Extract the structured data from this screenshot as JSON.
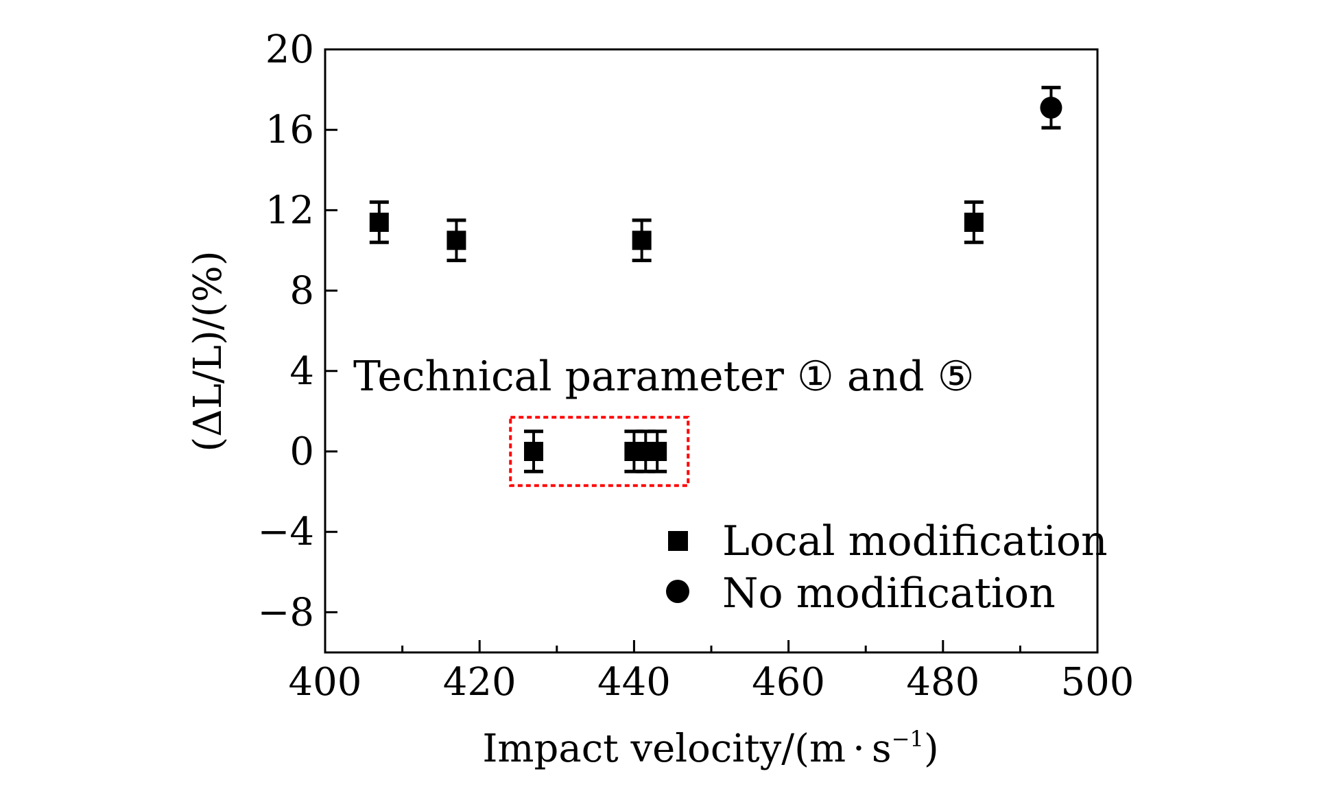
{
  "chart_data": {
    "type": "scatter",
    "title": "",
    "xlabel": "Impact velocity/(m·s⁻¹)",
    "xlabel_main": "Impact velocity/(m",
    "xlabel_dot": "·",
    "xlabel_s": "s",
    "xlabel_exp": "−1",
    "xlabel_close": ")",
    "ylabel": "(ΔL/L)/(%)",
    "xlim": [
      400,
      500
    ],
    "ylim": [
      -10,
      20
    ],
    "xticks": [
      400,
      420,
      440,
      460,
      480,
      500
    ],
    "xticks_minor": [
      410,
      430,
      450,
      470,
      490
    ],
    "yticks": [
      20,
      16,
      12,
      8,
      4,
      0,
      -4,
      -8
    ],
    "ytick_labels": [
      "20",
      "16",
      "12",
      "8",
      "4",
      "0",
      "−4",
      "−8"
    ],
    "grid": false,
    "legend_position": "bottom-right",
    "series": [
      {
        "name": "Local modification",
        "marker": "square",
        "points": [
          {
            "x": 407,
            "y": 11.4,
            "err": 1.0
          },
          {
            "x": 417,
            "y": 10.5,
            "err": 1.0
          },
          {
            "x": 441,
            "y": 10.5,
            "err": 1.0
          },
          {
            "x": 484,
            "y": 11.4,
            "err": 1.0
          },
          {
            "x": 427,
            "y": 0,
            "err": 1.0
          },
          {
            "x": 440,
            "y": 0,
            "err": 1.0
          },
          {
            "x": 441.5,
            "y": 0,
            "err": 1.0
          },
          {
            "x": 443,
            "y": 0,
            "err": 1.0
          }
        ]
      },
      {
        "name": "No modification",
        "marker": "circle",
        "points": [
          {
            "x": 494,
            "y": 17.1,
            "err": 1.0
          }
        ]
      }
    ],
    "annotation": {
      "text": "Technical parameter ① and ⑤",
      "x_range": [
        424,
        447
      ],
      "y_range": [
        -1.7,
        1.7
      ],
      "box_color": "#ff0000"
    },
    "colors": {
      "marker": "#000000",
      "axis": "#000000",
      "highlight": "#ff0000"
    }
  }
}
